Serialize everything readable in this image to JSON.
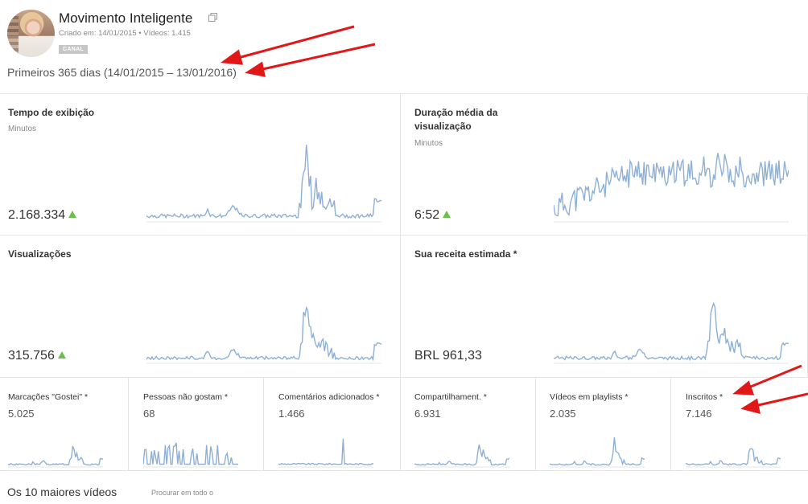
{
  "channel": {
    "name": "Movimento Inteligente",
    "meta": "Criado em: 14/01/2015 • Vídeos: 1.415",
    "badge": "CANAL"
  },
  "period": "Primeiros 365 dias (14/01/2015 – 13/01/2016)",
  "metrics": {
    "watch_time": {
      "title": "Tempo de exibição",
      "unit": "Minutos",
      "value": "2.168.334",
      "trend": "up"
    },
    "avg_duration": {
      "title_line1": "Duração média da",
      "title_line2": "visualização",
      "unit": "Minutos",
      "value": "6:52",
      "trend": "up"
    },
    "views": {
      "title": "Visualizações",
      "value": "315.756",
      "trend": "up"
    },
    "revenue": {
      "title": "Sua receita estimada *",
      "value": "BRL 961,33"
    }
  },
  "small_metrics": [
    {
      "title": "Marcações \"Gostei\" *",
      "value": "5.025"
    },
    {
      "title": "Pessoas não gostam *",
      "value": "68"
    },
    {
      "title": "Comentários adicionados *",
      "value": "1.466"
    },
    {
      "title": "Compartilhament. *",
      "value": "6.931"
    },
    {
      "title": "Vídeos em playlists *",
      "value": "2.035"
    },
    {
      "title": "Inscritos *",
      "value": "7.146"
    }
  ],
  "footer": {
    "title": "Os 10 maiores vídeos",
    "search_hint": "Procurar em todo o"
  },
  "colors": {
    "line": "#8fb0d6",
    "trend_up": "#6cc04a",
    "annotation_arrow": "#e01818"
  }
}
